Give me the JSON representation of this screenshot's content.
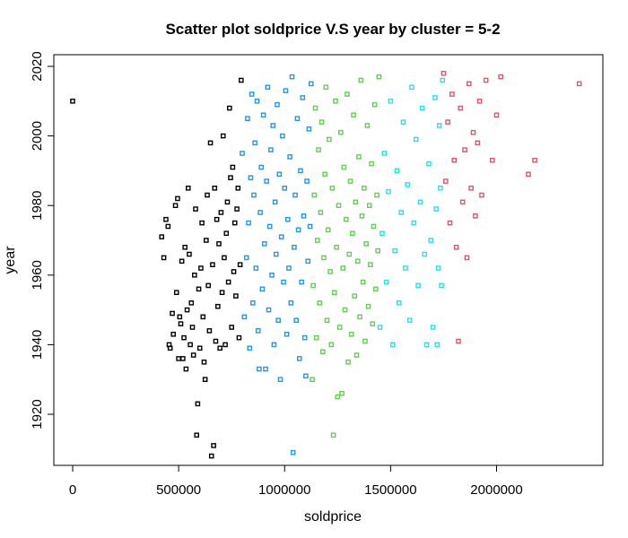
{
  "chart_data": {
    "type": "scatter",
    "title": "Scatter plot soldprice V.S year by cluster = 5-2",
    "xlabel": "soldprice",
    "ylabel": "year",
    "xlim": [
      0,
      2400000
    ],
    "ylim": [
      1910,
      2020
    ],
    "xticks": [
      0,
      500000,
      1000000,
      1500000,
      2000000
    ],
    "xtick_labels": [
      "0",
      "500000",
      "1000000",
      "1500000",
      "2000000"
    ],
    "yticks": [
      1920,
      1940,
      1960,
      1980,
      2000,
      2020
    ],
    "ytick_labels": [
      "1920",
      "1940",
      "1960",
      "1980",
      "2000",
      "2020"
    ],
    "grid": false,
    "legend": "none",
    "marker": "open-square",
    "series": [
      {
        "color": "#000000",
        "points": [
          [
            0,
            2010
          ],
          [
            420000,
            1971
          ],
          [
            430000,
            1965
          ],
          [
            440000,
            1976
          ],
          [
            450000,
            1974
          ],
          [
            455000,
            1940
          ],
          [
            460000,
            1939
          ],
          [
            470000,
            1949
          ],
          [
            475000,
            1943
          ],
          [
            485000,
            1980
          ],
          [
            490000,
            1955
          ],
          [
            495000,
            1982
          ],
          [
            500000,
            1936
          ],
          [
            505000,
            1948
          ],
          [
            510000,
            1946
          ],
          [
            515000,
            1964
          ],
          [
            520000,
            1936
          ],
          [
            525000,
            1942
          ],
          [
            530000,
            1968
          ],
          [
            535000,
            1933
          ],
          [
            540000,
            1950
          ],
          [
            545000,
            1985
          ],
          [
            550000,
            1966
          ],
          [
            555000,
            1940
          ],
          [
            560000,
            1952
          ],
          [
            565000,
            1945
          ],
          [
            570000,
            1937
          ],
          [
            575000,
            1960
          ],
          [
            580000,
            1979
          ],
          [
            585000,
            1914
          ],
          [
            590000,
            1923
          ],
          [
            595000,
            1956
          ],
          [
            600000,
            1939
          ],
          [
            605000,
            1962
          ],
          [
            610000,
            1975
          ],
          [
            615000,
            1948
          ],
          [
            620000,
            1935
          ],
          [
            625000,
            1930
          ],
          [
            630000,
            1970
          ],
          [
            635000,
            1983
          ],
          [
            640000,
            1957
          ],
          [
            645000,
            1944
          ],
          [
            650000,
            1998
          ],
          [
            655000,
            1908
          ],
          [
            660000,
            1963
          ],
          [
            665000,
            1911
          ],
          [
            670000,
            1985
          ],
          [
            675000,
            1941
          ],
          [
            680000,
            1976
          ],
          [
            685000,
            1951
          ],
          [
            690000,
            1969
          ],
          [
            695000,
            1939
          ],
          [
            700000,
            1978
          ],
          [
            705000,
            1955
          ],
          [
            710000,
            2000
          ],
          [
            715000,
            1965
          ],
          [
            720000,
            1940
          ],
          [
            725000,
            1972
          ],
          [
            730000,
            1981
          ],
          [
            735000,
            1958
          ],
          [
            740000,
            2008
          ],
          [
            745000,
            1988
          ],
          [
            750000,
            1945
          ],
          [
            755000,
            1991
          ],
          [
            760000,
            1961
          ],
          [
            765000,
            1975
          ],
          [
            770000,
            1954
          ],
          [
            775000,
            1979
          ],
          [
            780000,
            1985
          ],
          [
            785000,
            1942
          ],
          [
            790000,
            1963
          ],
          [
            795000,
            2016
          ]
        ]
      },
      {
        "color": "#2297E6",
        "points": [
          [
            800000,
            1995
          ],
          [
            810000,
            1948
          ],
          [
            820000,
            1965
          ],
          [
            825000,
            2005
          ],
          [
            830000,
            1975
          ],
          [
            835000,
            1939
          ],
          [
            840000,
            1988
          ],
          [
            845000,
            2012
          ],
          [
            850000,
            1952
          ],
          [
            855000,
            1983
          ],
          [
            860000,
            1998
          ],
          [
            865000,
            1962
          ],
          [
            870000,
            2010
          ],
          [
            875000,
            1944
          ],
          [
            880000,
            1933
          ],
          [
            885000,
            1978
          ],
          [
            890000,
            1991
          ],
          [
            895000,
            1956
          ],
          [
            900000,
            2006
          ],
          [
            905000,
            1969
          ],
          [
            910000,
            1933
          ],
          [
            915000,
            1987
          ],
          [
            920000,
            2014
          ],
          [
            925000,
            1950
          ],
          [
            930000,
            1974
          ],
          [
            935000,
            1996
          ],
          [
            940000,
            1960
          ],
          [
            945000,
            2003
          ],
          [
            950000,
            1940
          ],
          [
            955000,
            1981
          ],
          [
            960000,
            1966
          ],
          [
            965000,
            2009
          ],
          [
            970000,
            1947
          ],
          [
            975000,
            1989
          ],
          [
            980000,
            1930
          ],
          [
            985000,
            1971
          ],
          [
            990000,
            2000
          ],
          [
            995000,
            1958
          ],
          [
            1000000,
            1985
          ],
          [
            1005000,
            2013
          ],
          [
            1010000,
            1943
          ],
          [
            1015000,
            1976
          ],
          [
            1020000,
            1962
          ],
          [
            1025000,
            1994
          ],
          [
            1030000,
            1952
          ],
          [
            1035000,
            2017
          ],
          [
            1040000,
            1909
          ],
          [
            1045000,
            1968
          ],
          [
            1050000,
            1983
          ],
          [
            1055000,
            1947
          ],
          [
            1060000,
            2005
          ],
          [
            1065000,
            1973
          ],
          [
            1070000,
            1936
          ],
          [
            1075000,
            1990
          ],
          [
            1080000,
            1958
          ],
          [
            1085000,
            2011
          ],
          [
            1090000,
            1977
          ],
          [
            1095000,
            1942
          ],
          [
            1100000,
            1931
          ],
          [
            1105000,
            1987
          ],
          [
            1110000,
            1964
          ],
          [
            1115000,
            2002
          ],
          [
            1120000,
            1974
          ],
          [
            1125000,
            2015
          ]
        ]
      },
      {
        "color": "#61D04F",
        "points": [
          [
            1130000,
            1930
          ],
          [
            1135000,
            1957
          ],
          [
            1140000,
            1983
          ],
          [
            1145000,
            2008
          ],
          [
            1150000,
            1942
          ],
          [
            1155000,
            1970
          ],
          [
            1160000,
            1996
          ],
          [
            1165000,
            1952
          ],
          [
            1170000,
            1978
          ],
          [
            1175000,
            2004
          ],
          [
            1180000,
            1938
          ],
          [
            1185000,
            1965
          ],
          [
            1190000,
            1989
          ],
          [
            1195000,
            2014
          ],
          [
            1200000,
            1947
          ],
          [
            1205000,
            1973
          ],
          [
            1210000,
            1999
          ],
          [
            1215000,
            1961
          ],
          [
            1220000,
            1940
          ],
          [
            1225000,
            1985
          ],
          [
            1230000,
            1914
          ],
          [
            1235000,
            1955
          ],
          [
            1240000,
            2010
          ],
          [
            1245000,
            1968
          ],
          [
            1250000,
            1925
          ],
          [
            1255000,
            1980
          ],
          [
            1260000,
            1945
          ],
          [
            1265000,
            2001
          ],
          [
            1270000,
            1926
          ],
          [
            1275000,
            1962
          ],
          [
            1280000,
            1991
          ],
          [
            1285000,
            1950
          ],
          [
            1290000,
            1976
          ],
          [
            1295000,
            2012
          ],
          [
            1300000,
            1935
          ],
          [
            1305000,
            1966
          ],
          [
            1310000,
            1987
          ],
          [
            1315000,
            1943
          ],
          [
            1320000,
            1972
          ],
          [
            1325000,
            2006
          ],
          [
            1330000,
            1954
          ],
          [
            1335000,
            1981
          ],
          [
            1340000,
            1937
          ],
          [
            1345000,
            1964
          ],
          [
            1350000,
            1994
          ],
          [
            1355000,
            1948
          ],
          [
            1360000,
            2016
          ],
          [
            1365000,
            1977
          ],
          [
            1370000,
            1958
          ],
          [
            1375000,
            1985
          ],
          [
            1380000,
            1941
          ],
          [
            1385000,
            1969
          ],
          [
            1390000,
            2003
          ],
          [
            1395000,
            1951
          ],
          [
            1400000,
            1980
          ],
          [
            1405000,
            1963
          ],
          [
            1410000,
            1992
          ],
          [
            1415000,
            1946
          ],
          [
            1420000,
            1974
          ],
          [
            1425000,
            2009
          ],
          [
            1430000,
            1956
          ],
          [
            1435000,
            1983
          ],
          [
            1440000,
            1967
          ],
          [
            1445000,
            2017
          ]
        ]
      },
      {
        "color": "#28E2E5",
        "points": [
          [
            1450000,
            1945
          ],
          [
            1460000,
            1972
          ],
          [
            1470000,
            1995
          ],
          [
            1480000,
            1958
          ],
          [
            1490000,
            1984
          ],
          [
            1500000,
            2010
          ],
          [
            1510000,
            1940
          ],
          [
            1520000,
            1967
          ],
          [
            1530000,
            1990
          ],
          [
            1540000,
            1952
          ],
          [
            1550000,
            1978
          ],
          [
            1560000,
            2004
          ],
          [
            1570000,
            1962
          ],
          [
            1580000,
            1986
          ],
          [
            1590000,
            1947
          ],
          [
            1600000,
            2014
          ],
          [
            1610000,
            1975
          ],
          [
            1620000,
            1999
          ],
          [
            1630000,
            1957
          ],
          [
            1640000,
            1981
          ],
          [
            1650000,
            2008
          ],
          [
            1660000,
            1966
          ],
          [
            1670000,
            1940
          ],
          [
            1680000,
            1992
          ],
          [
            1690000,
            1970
          ],
          [
            1700000,
            1945
          ],
          [
            1710000,
            2011
          ],
          [
            1715000,
            1979
          ],
          [
            1720000,
            1940
          ],
          [
            1725000,
            1962
          ],
          [
            1730000,
            2003
          ],
          [
            1735000,
            1985
          ],
          [
            1740000,
            1957
          ],
          [
            1745000,
            2016
          ]
        ]
      },
      {
        "color": "#DF536B",
        "points": [
          [
            1750000,
            2018
          ],
          [
            1760000,
            1987
          ],
          [
            1770000,
            2004
          ],
          [
            1780000,
            1975
          ],
          [
            1790000,
            2012
          ],
          [
            1800000,
            1993
          ],
          [
            1810000,
            1968
          ],
          [
            1820000,
            1941
          ],
          [
            1830000,
            2008
          ],
          [
            1840000,
            1981
          ],
          [
            1850000,
            1996
          ],
          [
            1860000,
            1965
          ],
          [
            1870000,
            2015
          ],
          [
            1880000,
            1985
          ],
          [
            1890000,
            2001
          ],
          [
            1900000,
            1977
          ],
          [
            1910000,
            1998
          ],
          [
            1920000,
            2010
          ],
          [
            1930000,
            1983
          ],
          [
            1950000,
            2016
          ],
          [
            1980000,
            1993
          ],
          [
            2000000,
            2006
          ],
          [
            2020000,
            2017
          ],
          [
            2150000,
            1989
          ],
          [
            2180000,
            1993
          ],
          [
            2390000,
            2015
          ]
        ]
      }
    ]
  }
}
